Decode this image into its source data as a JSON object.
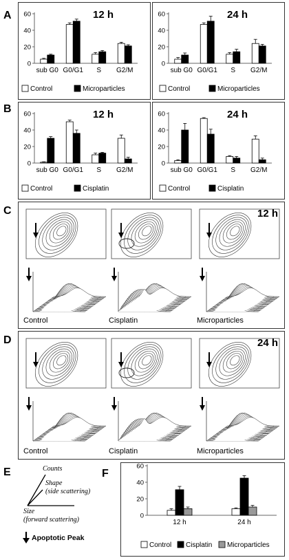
{
  "panel_labels": {
    "a": "A",
    "b": "B",
    "c": "C",
    "d": "D",
    "e": "E",
    "f": "F"
  },
  "chart_data": [
    {
      "id": "A12",
      "type": "bar",
      "title": "12 h",
      "categories": [
        "sub G0",
        "G0/G1",
        "S",
        "G2/M"
      ],
      "yticks": [
        0,
        20,
        40,
        60
      ],
      "ylim": [
        0,
        60
      ],
      "series": [
        {
          "name": "Control",
          "color": "#ffffff",
          "values": [
            5,
            47,
            11,
            24
          ],
          "errors": [
            1,
            2,
            2,
            1.5
          ]
        },
        {
          "name": "Microparticles",
          "color": "#000000",
          "values": [
            10,
            51,
            14,
            21
          ],
          "errors": [
            1,
            2.5,
            1.5,
            1.5
          ]
        }
      ]
    },
    {
      "id": "A24",
      "type": "bar",
      "title": "24 h",
      "categories": [
        "sub G0",
        "G0/G1",
        "S",
        "G2/M"
      ],
      "yticks": [
        0,
        20,
        40,
        60
      ],
      "ylim": [
        0,
        60
      ],
      "series": [
        {
          "name": "Control",
          "color": "#ffffff",
          "values": [
            5,
            47,
            11,
            24
          ],
          "errors": [
            2,
            2,
            2,
            5
          ]
        },
        {
          "name": "Microparticles",
          "color": "#000000",
          "values": [
            10,
            51,
            14,
            21
          ],
          "errors": [
            2.5,
            6,
            3,
            2
          ]
        }
      ]
    },
    {
      "id": "B12",
      "type": "bar",
      "title": "12 h",
      "categories": [
        "sub G0",
        "G0/G1",
        "S",
        "G2/M"
      ],
      "yticks": [
        0,
        20,
        40,
        60
      ],
      "ylim": [
        0,
        60
      ],
      "series": [
        {
          "name": "Control",
          "color": "#ffffff",
          "values": [
            1,
            50,
            10,
            30
          ],
          "errors": [
            0.5,
            2,
            2,
            4
          ]
        },
        {
          "name": "Cisplatin",
          "color": "#000000",
          "values": [
            30,
            36,
            12,
            5
          ],
          "errors": [
            2,
            4,
            1,
            2
          ]
        }
      ]
    },
    {
      "id": "B24",
      "type": "bar",
      "title": "24 h",
      "categories": [
        "sub G0",
        "G0/G1",
        "S",
        "G2/M"
      ],
      "yticks": [
        0,
        20,
        40,
        60
      ],
      "ylim": [
        0,
        60
      ],
      "series": [
        {
          "name": "Control",
          "color": "#ffffff",
          "values": [
            3,
            54,
            8,
            29
          ],
          "errors": [
            1,
            1,
            1,
            4
          ]
        },
        {
          "name": "Cisplatin",
          "color": "#000000",
          "values": [
            40,
            35,
            6,
            4
          ],
          "errors": [
            8,
            6,
            2,
            2
          ]
        }
      ]
    },
    {
      "id": "F",
      "type": "bar",
      "title": "",
      "categories": [
        "12 h",
        "24 h"
      ],
      "yticks": [
        0,
        20,
        40,
        60
      ],
      "ylim": [
        0,
        60
      ],
      "series": [
        {
          "name": "Control",
          "color": "#ffffff",
          "values": [
            6,
            8
          ],
          "errors": [
            2,
            1
          ]
        },
        {
          "name": "Cisplatin",
          "color": "#000000",
          "values": [
            31,
            45
          ],
          "errors": [
            4,
            3
          ]
        },
        {
          "name": "Microparticles",
          "color": "#999999",
          "values": [
            8,
            10
          ],
          "errors": [
            2,
            2
          ]
        }
      ]
    }
  ],
  "flow_c": {
    "time": "12 h",
    "labels": [
      "Control",
      "Cisplatin",
      "Microparticles"
    ]
  },
  "flow_d": {
    "time": "24 h",
    "labels": [
      "Control",
      "Cisplatin",
      "Microparticles"
    ]
  },
  "legend_e": {
    "counts": "Counts",
    "shape": "Shape",
    "shape_sub": "(side scattering)",
    "size": "Size",
    "size_sub": "(forward scattering)",
    "apoptotic": "Apoptotic Peak"
  }
}
